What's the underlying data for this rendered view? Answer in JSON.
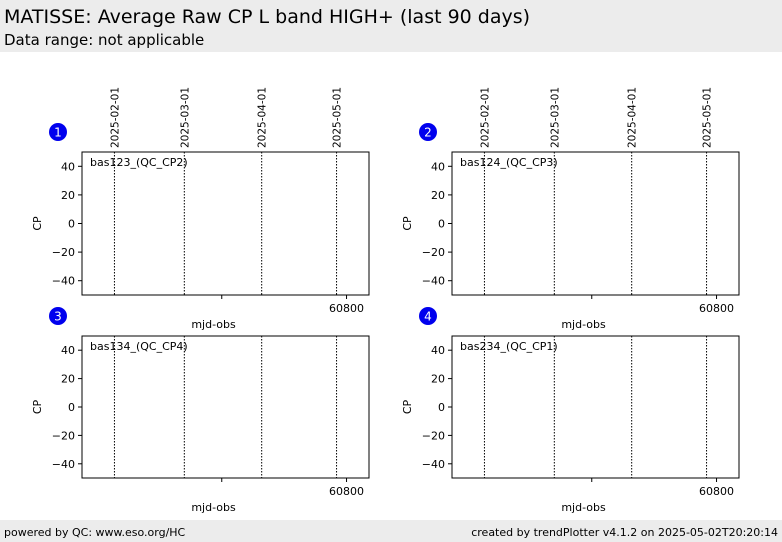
{
  "header": {
    "title": "MATISSE: Average Raw CP L band HIGH+ (last 90 days)",
    "subtitle": "Data range: not applicable"
  },
  "footer": {
    "left": "powered by QC: www.eso.org/HC",
    "right": "created by trendPlotter v4.1.2 on 2025-05-02T20:20:14"
  },
  "colors": {
    "badge": "#0000ee",
    "header_bg": "#ececec"
  },
  "chart_data": [
    {
      "type": "scatter",
      "badge": "1",
      "label": "bas123_(QC_CP2)",
      "xlabel": "mjd-obs",
      "ylabel": "CP",
      "xlim": [
        60694,
        60809
      ],
      "ylim": [
        -50,
        50
      ],
      "yticks": [
        40,
        20,
        0,
        -20,
        -40
      ],
      "xticks": [
        60800
      ],
      "xticks_minor": [
        60750
      ],
      "date_markers": [
        {
          "label": "2025-02-01",
          "mjd": 60707
        },
        {
          "label": "2025-03-01",
          "mjd": 60735
        },
        {
          "label": "2025-04-01",
          "mjd": 60766
        },
        {
          "label": "2025-05-01",
          "mjd": 60796
        }
      ],
      "series": []
    },
    {
      "type": "scatter",
      "badge": "2",
      "label": "bas124_(QC_CP3)",
      "xlabel": "mjd-obs",
      "ylabel": "CP",
      "xlim": [
        60694,
        60809
      ],
      "ylim": [
        -50,
        50
      ],
      "yticks": [
        40,
        20,
        0,
        -20,
        -40
      ],
      "xticks": [
        60800
      ],
      "xticks_minor": [
        60750
      ],
      "date_markers": [
        {
          "label": "2025-02-01",
          "mjd": 60707
        },
        {
          "label": "2025-03-01",
          "mjd": 60735
        },
        {
          "label": "2025-04-01",
          "mjd": 60766
        },
        {
          "label": "2025-05-01",
          "mjd": 60796
        }
      ],
      "series": []
    },
    {
      "type": "scatter",
      "badge": "3",
      "label": "bas134_(QC_CP4)",
      "xlabel": "mjd-obs",
      "ylabel": "CP",
      "xlim": [
        60694,
        60809
      ],
      "ylim": [
        -50,
        50
      ],
      "yticks": [
        40,
        20,
        0,
        -20,
        -40
      ],
      "xticks": [
        60800
      ],
      "xticks_minor": [
        60750
      ],
      "date_markers": [
        {
          "mjd": 60707
        },
        {
          "mjd": 60735
        },
        {
          "mjd": 60766
        },
        {
          "mjd": 60796
        }
      ],
      "series": []
    },
    {
      "type": "scatter",
      "badge": "4",
      "label": "bas234_(QC_CP1)",
      "xlabel": "mjd-obs",
      "ylabel": "CP",
      "xlim": [
        60694,
        60809
      ],
      "ylim": [
        -50,
        50
      ],
      "yticks": [
        40,
        20,
        0,
        -20,
        -40
      ],
      "xticks": [
        60800
      ],
      "xticks_minor": [
        60750
      ],
      "date_markers": [
        {
          "mjd": 60707
        },
        {
          "mjd": 60735
        },
        {
          "mjd": 60766
        },
        {
          "mjd": 60796
        }
      ],
      "series": []
    }
  ]
}
